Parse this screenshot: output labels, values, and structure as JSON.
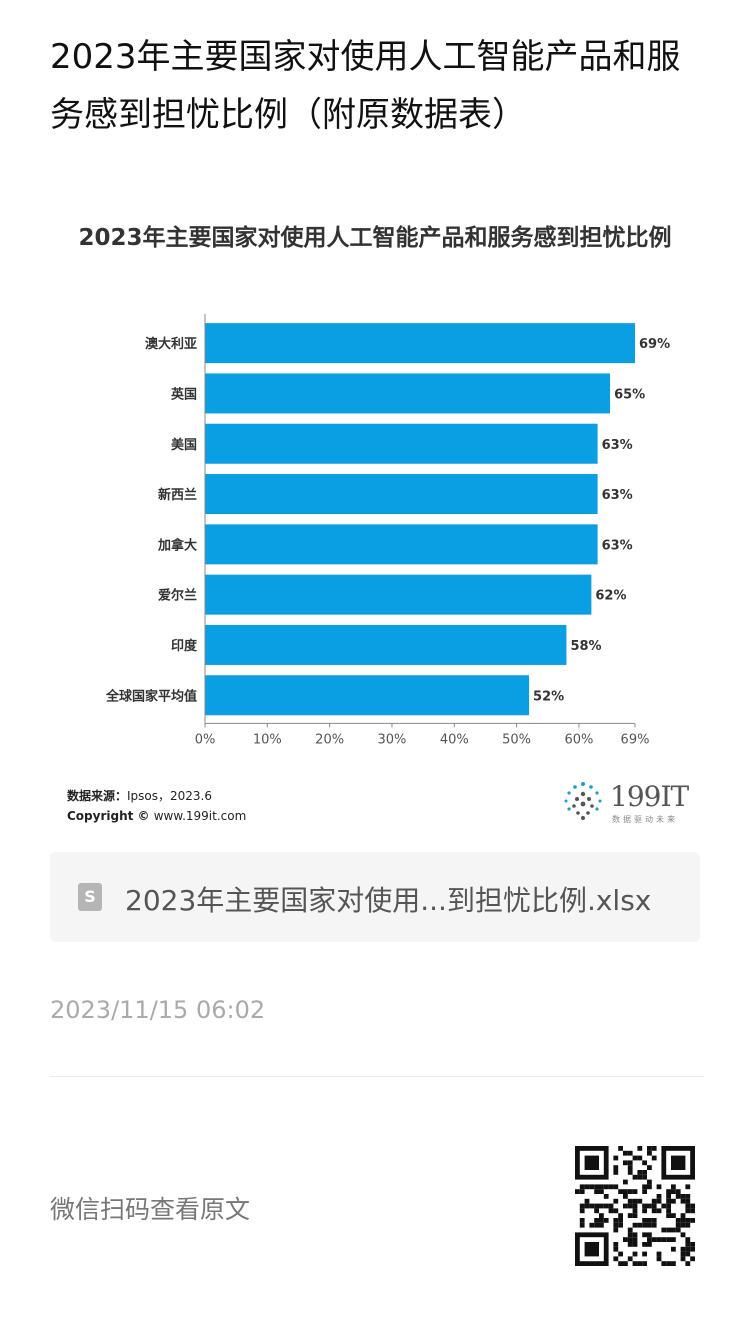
{
  "article": {
    "title": "2023年主要国家对使用人工智能产品和服务感到担忧比例（附原数据表）"
  },
  "chart_data": {
    "type": "bar",
    "orientation": "horizontal",
    "title": "2023年主要国家对使用人工智能产品和服务感到担忧比例",
    "categories": [
      "澳大利亚",
      "英国",
      "美国",
      "新西兰",
      "加拿大",
      "爱尔兰",
      "印度",
      "全球国家平均值"
    ],
    "values": [
      69,
      65,
      63,
      63,
      63,
      62,
      58,
      52
    ],
    "value_labels": [
      "69%",
      "65%",
      "63%",
      "63%",
      "63%",
      "62%",
      "58%",
      "52%"
    ],
    "x_ticks": [
      "0%",
      "10%",
      "20%",
      "30%",
      "40%",
      "50%",
      "60%",
      "69%"
    ],
    "x_tick_values": [
      0,
      10,
      20,
      30,
      40,
      50,
      60,
      69
    ],
    "xlim": [
      0,
      69
    ],
    "xlabel": "",
    "ylabel": "",
    "grid": false,
    "bar_color": "#0a9ee3"
  },
  "source": {
    "label": "数据来源：",
    "value": "Ipsos，2023.6",
    "copyright_label": "Copyright ©",
    "copyright_value": "www.199it.com"
  },
  "logo": {
    "brand": "199IT",
    "slogan": "数据驱动未来"
  },
  "attachment": {
    "icon": "spreadsheet-file-icon",
    "icon_glyph": "S",
    "file_name": "2023年主要国家对使用...到担忧比例.xlsx"
  },
  "meta": {
    "timestamp": "2023/11/15 06:02"
  },
  "footer": {
    "scan_text": "微信扫码查看原文",
    "qr_icon": "qr-code-icon"
  }
}
